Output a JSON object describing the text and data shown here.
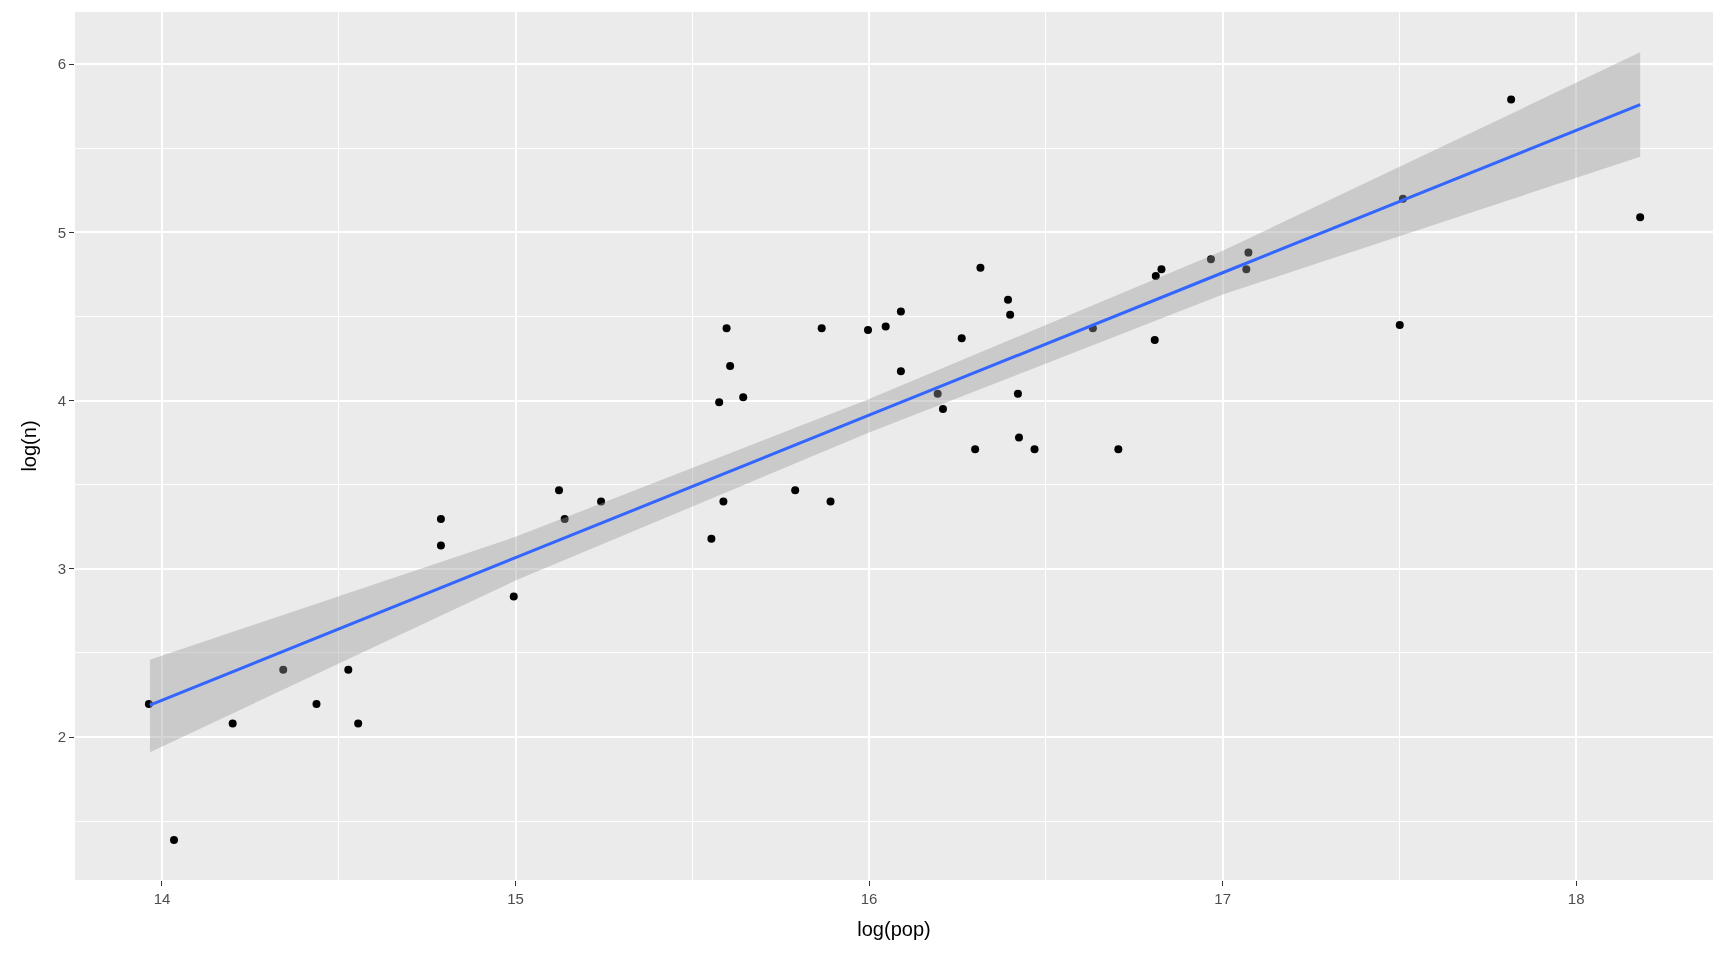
{
  "chart_data": {
    "type": "scatter",
    "xlabel": "log(pop)",
    "ylabel": "log(n)",
    "xlim": [
      13.754,
      18.387
    ],
    "ylim": [
      1.15,
      6.31
    ],
    "xticks": [
      14,
      15,
      16,
      17,
      18
    ],
    "yticks": [
      2,
      3,
      4,
      5,
      6
    ],
    "grid": true,
    "series": [
      {
        "marker": "circle",
        "color": "#000000",
        "x": [
          13.963,
          14.034,
          14.2,
          14.343,
          14.437,
          14.527,
          14.555,
          14.789,
          14.789,
          14.995,
          15.123,
          15.139,
          15.242,
          15.554,
          15.576,
          15.588,
          15.597,
          15.607,
          15.644,
          15.791,
          15.866,
          15.891,
          15.997,
          16.047,
          16.09,
          16.09,
          16.194,
          16.209,
          16.262,
          16.3,
          16.315,
          16.393,
          16.399,
          16.421,
          16.424,
          16.468,
          16.633,
          16.705,
          16.808,
          16.811,
          16.827,
          16.967,
          17.067,
          17.073,
          17.501,
          17.51,
          17.816,
          18.181
        ],
        "values": [
          2.197,
          1.388,
          2.08,
          2.4,
          2.197,
          2.4,
          2.08,
          3.296,
          3.138,
          2.835,
          3.467,
          3.296,
          3.4,
          3.178,
          3.99,
          3.4,
          4.43,
          4.205,
          4.02,
          3.467,
          4.43,
          3.4,
          4.42,
          4.44,
          4.175,
          4.53,
          4.04,
          3.95,
          4.37,
          3.71,
          4.79,
          4.6,
          4.51,
          4.04,
          3.78,
          3.71,
          4.43,
          3.71,
          4.36,
          4.74,
          4.78,
          4.84,
          4.78,
          4.88,
          4.45,
          5.2,
          5.79,
          5.09
        ]
      },
      {
        "type": "line",
        "color": "#3366ff",
        "x": [
          13.966,
          15,
          16,
          17,
          18.181
        ],
        "values": [
          2.19,
          3.066,
          3.913,
          4.76,
          5.76
        ],
        "lower": [
          1.91,
          2.93,
          3.81,
          4.63,
          5.45
        ],
        "upper": [
          2.46,
          3.19,
          4.01,
          4.89,
          6.07
        ]
      }
    ]
  }
}
